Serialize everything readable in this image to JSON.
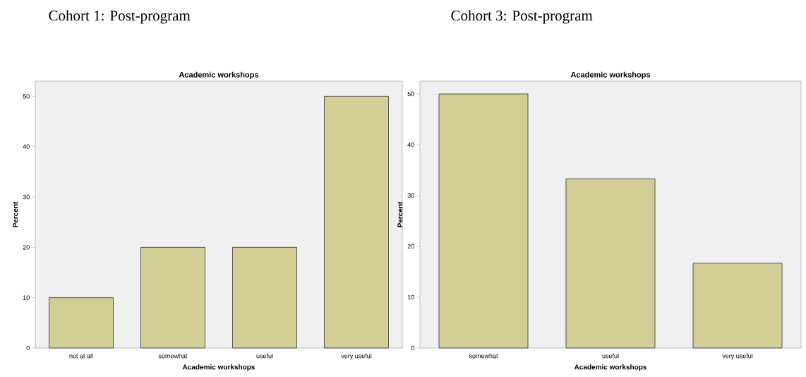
{
  "chart_data": [
    {
      "type": "bar",
      "title": "Cohort 1: Post-program",
      "subtitle": "Academic workshops",
      "xlabel": "Academic workshops",
      "ylabel": "Percent",
      "categories": [
        "not at all",
        "somewhat",
        "useful",
        "very useful"
      ],
      "values": [
        10,
        20,
        20,
        50
      ],
      "color": "#d3cd96",
      "ylim": [
        0,
        53
      ],
      "yticks": [
        0,
        10,
        20,
        30,
        40,
        50
      ]
    },
    {
      "type": "bar",
      "title": "Cohort 3: Post-program",
      "subtitle": "Academic workshops",
      "xlabel": "Academic workshops",
      "ylabel": "Percent",
      "categories": [
        "somewhat",
        "useful",
        "very useful"
      ],
      "values": [
        50,
        33.3,
        16.7
      ],
      "color": "#d3cd96",
      "ylim": [
        0,
        52.5
      ],
      "yticks": [
        0,
        10,
        20,
        30,
        40,
        50
      ]
    }
  ]
}
